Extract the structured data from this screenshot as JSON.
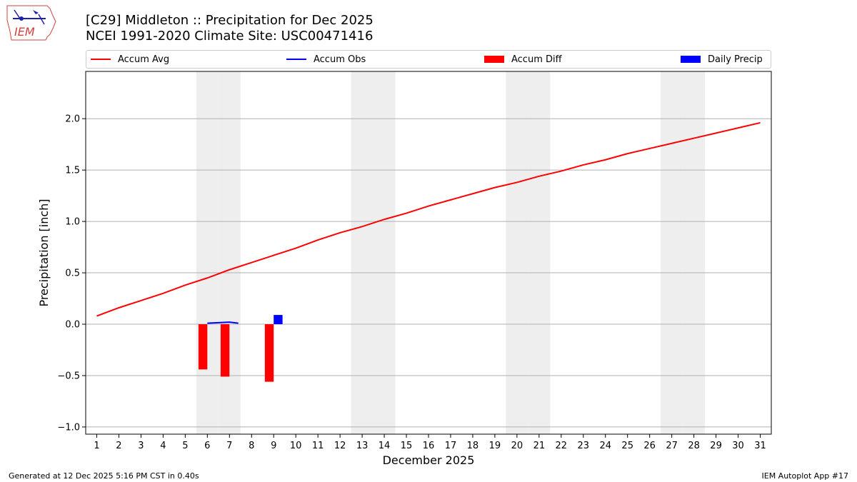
{
  "header": {
    "logo_text": "IEM",
    "title_line1": "[C29] Middleton :: Precipitation for Dec 2025",
    "title_line2": "NCEI 1991-2020 Climate Site: USC00471416"
  },
  "footer": {
    "generated": "Generated at 12 Dec 2025 5:16 PM CST in 0.40s",
    "app": "IEM Autoplot App #17"
  },
  "colors": {
    "accum_avg": "#ff0000",
    "accum_obs": "#0000ff",
    "accum_diff": "#ff0000",
    "daily_precip": "#0000ff",
    "weekend_shade": "#eeeeee",
    "grid": "#b0b0b0"
  },
  "chart_data": {
    "type": "line",
    "xlabel": "December 2025",
    "ylabel": "Precipitation [inch]",
    "xlim": [
      0.5,
      31.5
    ],
    "ylim": [
      -1.07,
      2.46
    ],
    "x_ticks": [
      1,
      2,
      3,
      4,
      5,
      6,
      7,
      8,
      9,
      10,
      11,
      12,
      13,
      14,
      15,
      16,
      17,
      18,
      19,
      20,
      21,
      22,
      23,
      24,
      25,
      26,
      27,
      28,
      29,
      30,
      31
    ],
    "y_ticks": [
      -1.0,
      -0.5,
      0.0,
      0.5,
      1.0,
      1.5,
      2.0
    ],
    "y_tick_labels": [
      "−1.0",
      "−0.5",
      "0.0",
      "0.5",
      "1.0",
      "1.5",
      "2.0"
    ],
    "grid": "horizontal",
    "weekend_days": [
      6,
      7,
      13,
      14,
      20,
      21,
      27,
      28
    ],
    "legend": [
      "Accum Avg",
      "Accum Obs",
      "Accum Diff",
      "Daily Precip"
    ],
    "legend_position": "top",
    "series": [
      {
        "name": "Accum Avg",
        "kind": "line",
        "x": [
          1,
          2,
          3,
          4,
          5,
          6,
          7,
          8,
          9,
          10,
          11,
          12,
          13,
          14,
          15,
          16,
          17,
          18,
          19,
          20,
          21,
          22,
          23,
          24,
          25,
          26,
          27,
          28,
          29,
          30,
          31
        ],
        "values": [
          0.08,
          0.16,
          0.23,
          0.3,
          0.38,
          0.45,
          0.53,
          0.6,
          0.67,
          0.74,
          0.82,
          0.89,
          0.95,
          1.02,
          1.08,
          1.15,
          1.21,
          1.27,
          1.33,
          1.38,
          1.44,
          1.49,
          1.55,
          1.6,
          1.66,
          1.71,
          1.76,
          1.81,
          1.86,
          1.91,
          1.96
        ]
      },
      {
        "name": "Accum Obs",
        "kind": "line",
        "x": [
          6,
          7,
          7.4
        ],
        "values": [
          0.01,
          0.02,
          0.01
        ]
      },
      {
        "name": "Accum Diff",
        "kind": "bar",
        "x": [
          6,
          7,
          9
        ],
        "values": [
          -0.44,
          -0.51,
          -0.56
        ]
      },
      {
        "name": "Daily Precip",
        "kind": "bar",
        "x": [
          9
        ],
        "values": [
          0.09
        ]
      }
    ]
  }
}
